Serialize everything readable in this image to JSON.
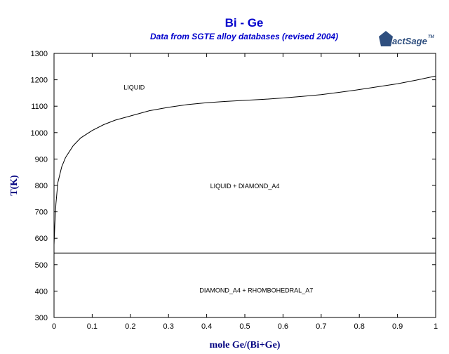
{
  "chart_data": {
    "type": "line",
    "title": "Bi - Ge",
    "subtitle": "Data from SGTE alloy databases (revised 2004)",
    "xlabel": "mole Ge/(Bi+Ge)",
    "ylabel": "T(K)",
    "xlim": [
      0,
      1
    ],
    "ylim": [
      300,
      1300
    ],
    "x_ticks": [
      "0",
      "0.1",
      "0.2",
      "0.3",
      "0.4",
      "0.5",
      "0.6",
      "0.7",
      "0.8",
      "0.9",
      "1"
    ],
    "y_ticks": [
      "300",
      "400",
      "500",
      "600",
      "700",
      "800",
      "900",
      "1000",
      "1100",
      "1200",
      "1300"
    ],
    "grid": false,
    "series": [
      {
        "x": [
          0,
          0.002,
          0.005,
          0.01,
          0.02,
          0.03,
          0.05,
          0.07,
          0.1,
          0.13,
          0.16,
          0.2,
          0.25,
          0.3,
          0.35,
          0.4,
          0.45,
          0.5,
          0.55,
          0.6,
          0.65,
          0.7,
          0.75,
          0.8,
          0.85,
          0.9,
          0.95,
          1.0
        ],
        "y": [
          575,
          650,
          730,
          810,
          870,
          905,
          950,
          980,
          1008,
          1030,
          1047,
          1063,
          1083,
          1096,
          1106,
          1113,
          1118,
          1122,
          1126,
          1131,
          1137,
          1144,
          1153,
          1163,
          1174,
          1185,
          1199,
          1214
        ]
      },
      {
        "x": [
          0,
          1
        ],
        "y": [
          544,
          544
        ]
      }
    ],
    "annotations": [
      {
        "text": "LIQUID",
        "x": 0.21,
        "y": 1163
      },
      {
        "text": "LIQUID + DIAMOND_A4",
        "x": 0.5,
        "y": 790
      },
      {
        "text": "DIAMOND_A4 + RHOMBOHEDRAL_A7",
        "x": 0.53,
        "y": 395
      }
    ]
  },
  "logo": {
    "text": "FactSage",
    "tm": "TM",
    "primary_color": "#2f4f7f"
  },
  "colors": {
    "title": "#0000cc",
    "axis_label": "#000080",
    "lines": "#000000"
  }
}
